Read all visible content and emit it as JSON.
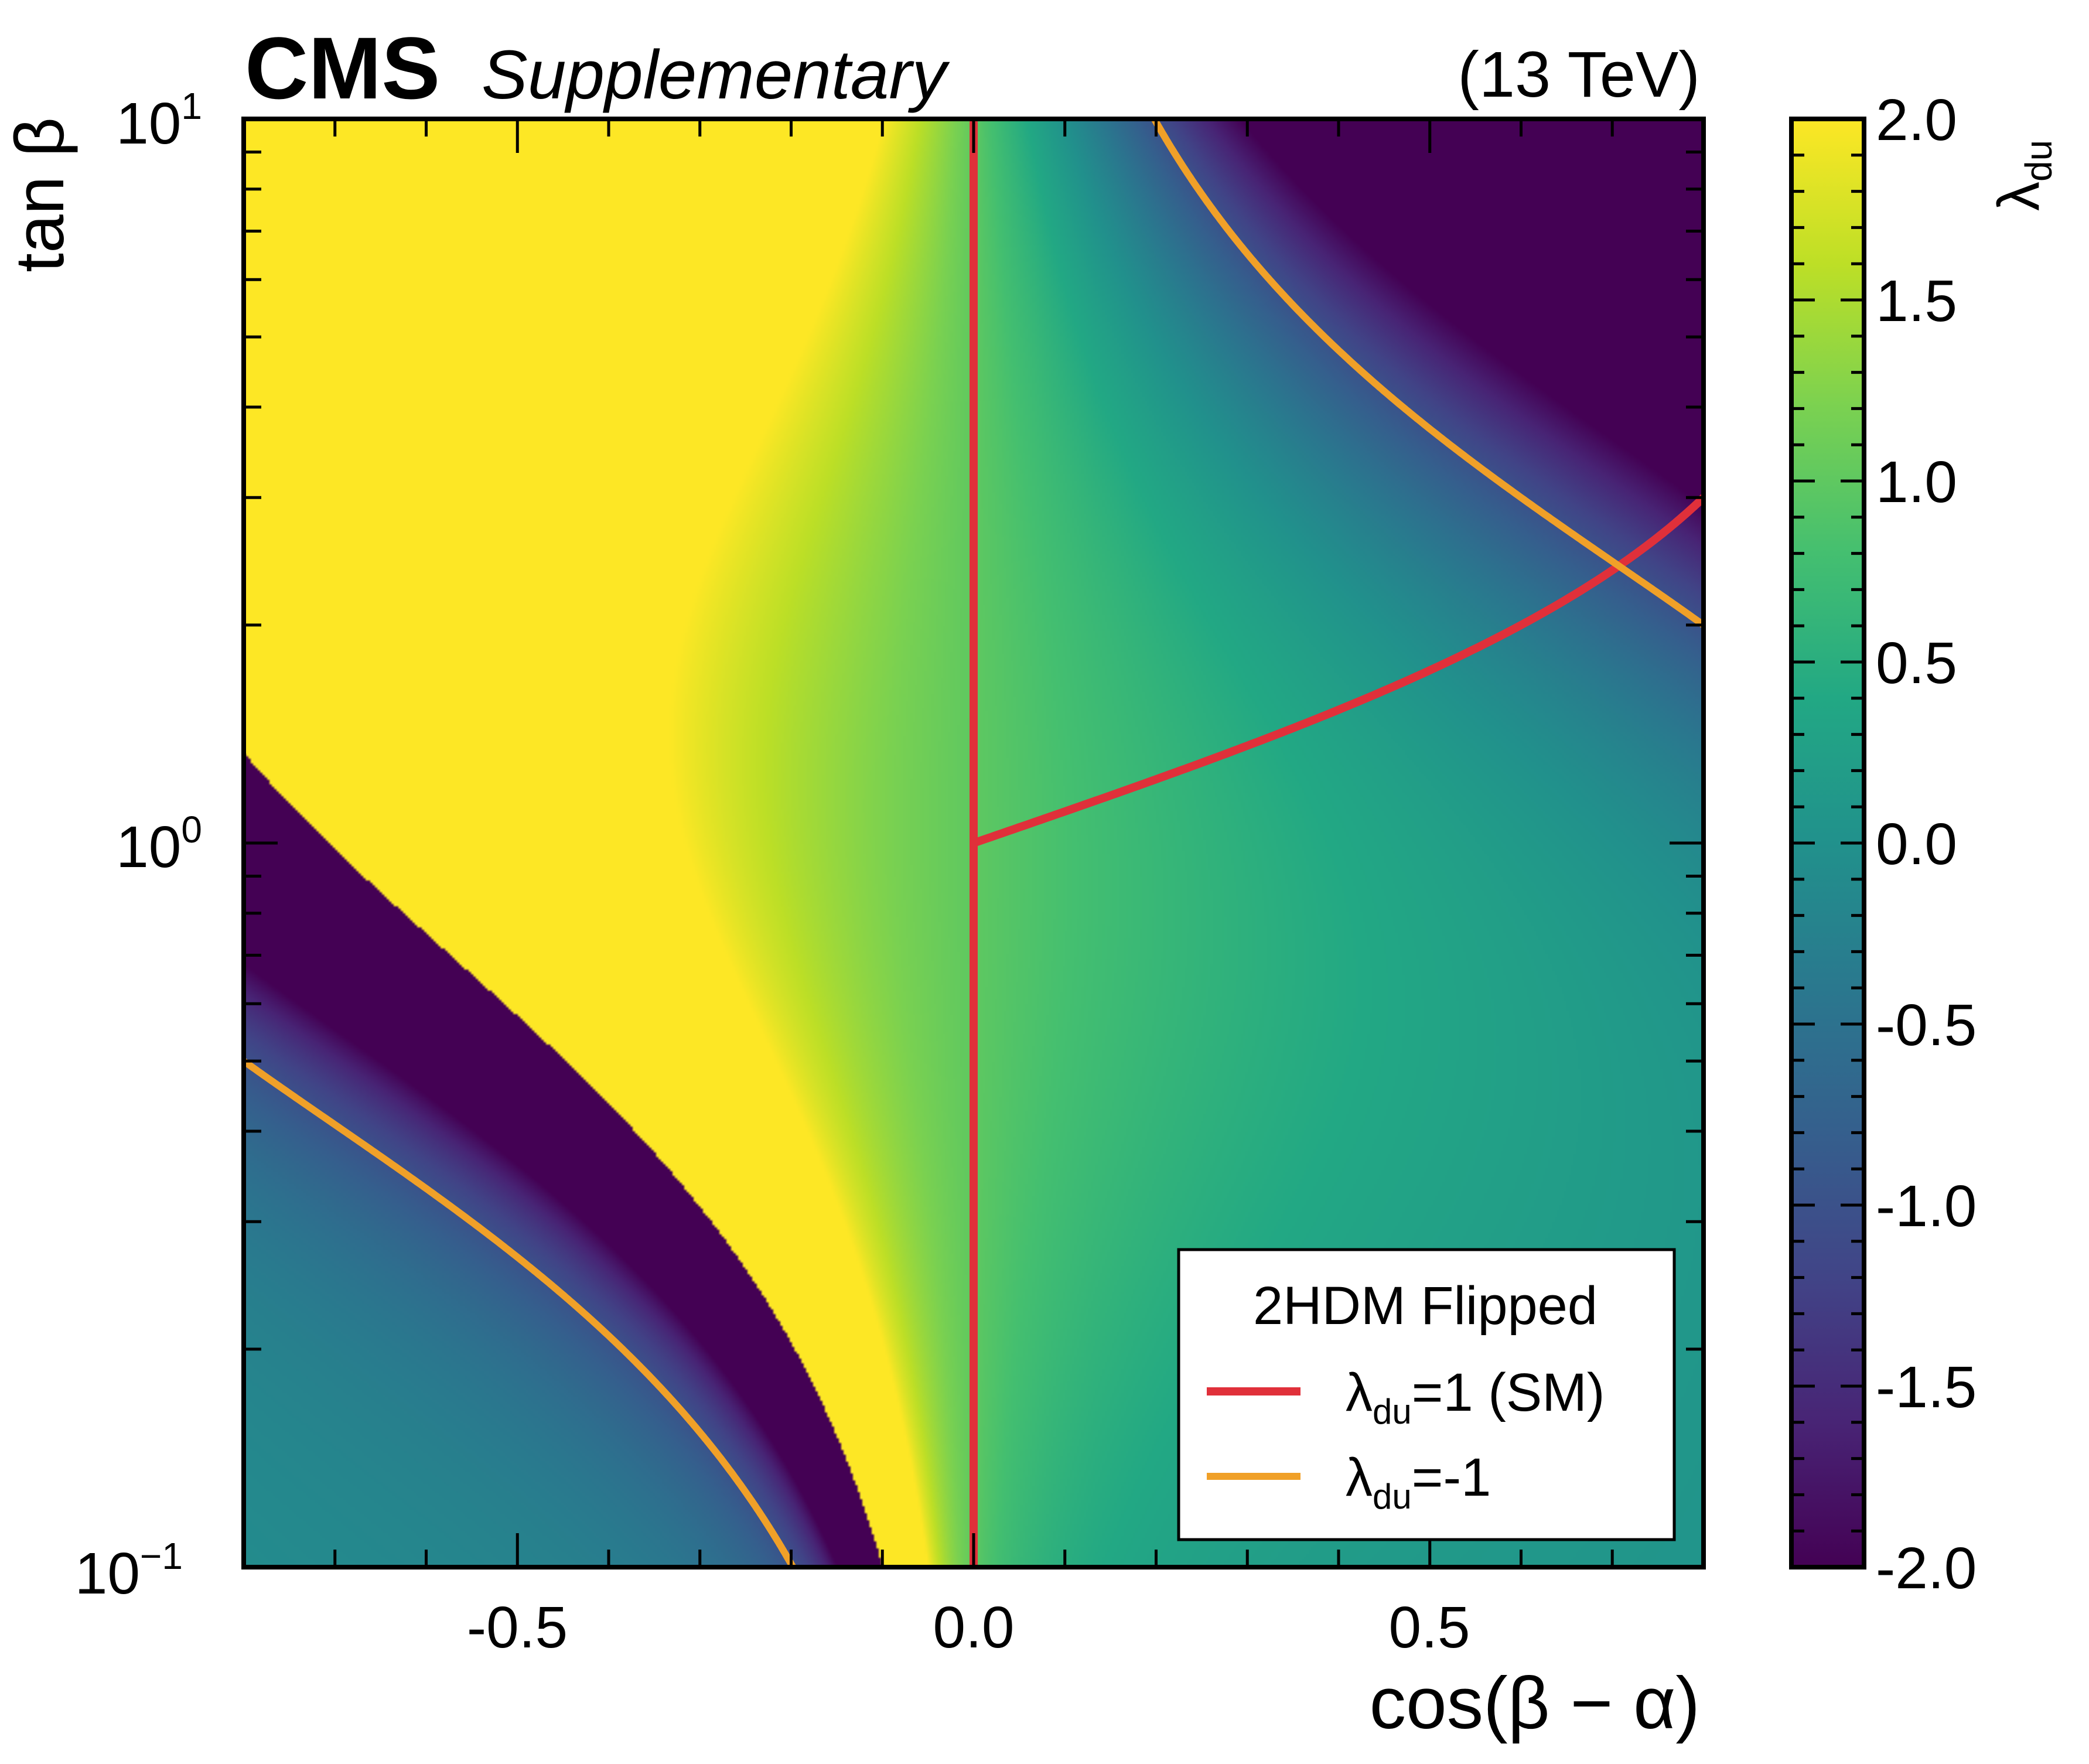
{
  "header": {
    "experiment": "CMS",
    "label": "Supplementary",
    "energy": "(13 TeV)"
  },
  "legend": {
    "title": "2HDM Flipped",
    "entries": [
      {
        "symbol": "λ",
        "subscript": "du",
        "text": "=1 (SM)",
        "color": "#e0303a"
      },
      {
        "symbol": "λ",
        "subscript": "du",
        "text": "=-1",
        "color": "#f0a028"
      }
    ]
  },
  "chart_data": {
    "type": "heatmap",
    "model": "2HDM Flipped",
    "title": "CMS Supplementary (13 TeV)",
    "xlabel": "cos(β − α)",
    "ylabel": "tan β",
    "xlim": [
      -0.8,
      0.8
    ],
    "ylim": [
      0.1,
      10
    ],
    "yscale": "log",
    "x_ticks": [
      {
        "value": -0.5,
        "label": "-0.5"
      },
      {
        "value": 0.0,
        "label": "0.0"
      },
      {
        "value": 0.5,
        "label": "0.5"
      }
    ],
    "y_ticks": [
      {
        "value": 0.1,
        "base": "10",
        "exp": "−1"
      },
      {
        "value": 1,
        "base": "10",
        "exp": "0"
      },
      {
        "value": 10,
        "base": "10",
        "exp": "1"
      }
    ],
    "colorbar": {
      "label_symbol": "λ",
      "label_subscript": "du",
      "range": [
        -2.0,
        2.0
      ],
      "colormap": "viridis",
      "ticks": [
        {
          "value": 2.0,
          "label": "2.0"
        },
        {
          "value": 1.5,
          "label": "1.5"
        },
        {
          "value": 1.0,
          "label": "1.0"
        },
        {
          "value": 0.5,
          "label": "0.5"
        },
        {
          "value": 0.0,
          "label": "0.0"
        },
        {
          "value": -0.5,
          "label": "-0.5"
        },
        {
          "value": -1.0,
          "label": "-1.0"
        },
        {
          "value": -1.5,
          "label": "-1.5"
        },
        {
          "value": -2.0,
          "label": "-2.0"
        }
      ]
    },
    "contours": [
      {
        "name": "λdu=1 (SM)",
        "level": 1,
        "color": "#e0303a"
      },
      {
        "name": "λdu=-1",
        "level": -1,
        "color": "#f0a028"
      }
    ]
  }
}
